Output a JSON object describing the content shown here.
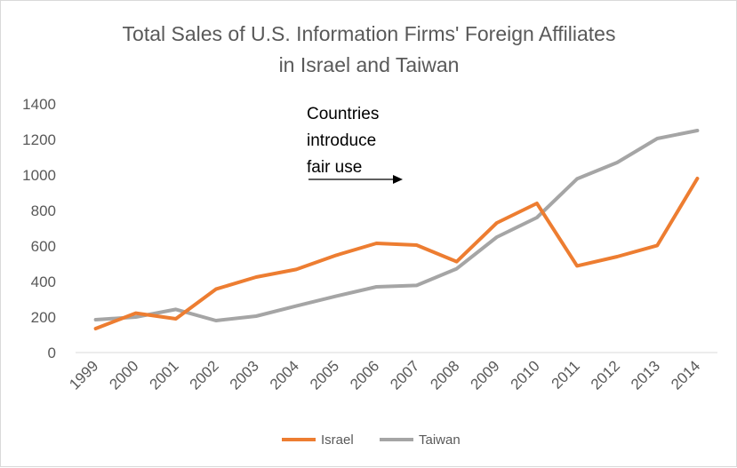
{
  "chart_data": {
    "type": "line",
    "title_lines": [
      "Total Sales of U.S. Information Firms' Foreign Affiliates",
      "in Israel and Taiwan"
    ],
    "categories": [
      "1999",
      "2000",
      "2001",
      "2002",
      "2003",
      "2004",
      "2005",
      "2006",
      "2007",
      "2008",
      "2009",
      "2010",
      "2011",
      "2012",
      "2013",
      "2014"
    ],
    "series": [
      {
        "name": "Israel",
        "color": "#ed7d31",
        "values": [
          135,
          222,
          190,
          357,
          425,
          468,
          548,
          615,
          605,
          512,
          730,
          840,
          488,
          540,
          603,
          980
        ]
      },
      {
        "name": "Taiwan",
        "color": "#a5a5a5",
        "values": [
          185,
          200,
          243,
          180,
          205,
          262,
          318,
          370,
          378,
          472,
          650,
          760,
          978,
          1070,
          1205,
          1250
        ]
      }
    ],
    "yticks": [
      0,
      200,
      400,
      600,
      800,
      1000,
      1200,
      1400
    ],
    "ylim": [
      0,
      1400
    ],
    "grid": false,
    "annotation": {
      "lines": [
        "Countries",
        "introduce",
        "fair use"
      ],
      "arrow": "right"
    },
    "legend_position": "bottom"
  }
}
